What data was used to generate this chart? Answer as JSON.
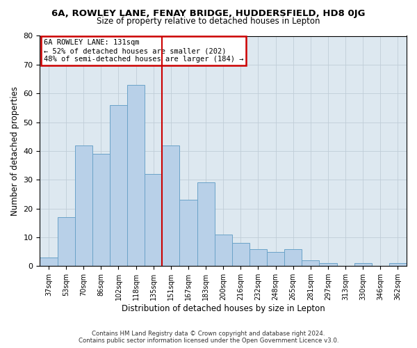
{
  "title1": "6A, ROWLEY LANE, FENAY BRIDGE, HUDDERSFIELD, HD8 0JG",
  "title2": "Size of property relative to detached houses in Lepton",
  "xlabel": "Distribution of detached houses by size in Lepton",
  "ylabel": "Number of detached properties",
  "categories": [
    "37sqm",
    "53sqm",
    "70sqm",
    "86sqm",
    "102sqm",
    "118sqm",
    "135sqm",
    "151sqm",
    "167sqm",
    "183sqm",
    "200sqm",
    "216sqm",
    "232sqm",
    "248sqm",
    "265sqm",
    "281sqm",
    "297sqm",
    "313sqm",
    "330sqm",
    "346sqm",
    "362sqm"
  ],
  "values": [
    3,
    17,
    42,
    39,
    56,
    63,
    32,
    42,
    23,
    29,
    11,
    8,
    6,
    5,
    6,
    2,
    1,
    0,
    1,
    0,
    1
  ],
  "bar_color": "#b8d0e8",
  "bar_edge_color": "#6ba3c8",
  "vline_color": "#cc0000",
  "annotation_text": "6A ROWLEY LANE: 131sqm\n← 52% of detached houses are smaller (202)\n48% of semi-detached houses are larger (184) →",
  "annotation_box_color": "#ffffff",
  "annotation_box_edge": "#cc0000",
  "ylim": [
    0,
    80
  ],
  "yticks": [
    0,
    10,
    20,
    30,
    40,
    50,
    60,
    70,
    80
  ],
  "footer1": "Contains HM Land Registry data © Crown copyright and database right 2024.",
  "footer2": "Contains public sector information licensed under the Open Government Licence v3.0.",
  "background_color": "#ffffff",
  "plot_bg_color": "#dde8f0",
  "grid_color": "#c0cdd8"
}
